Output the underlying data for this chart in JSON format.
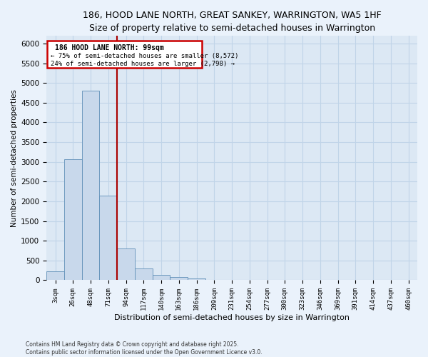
{
  "title1": "186, HOOD LANE NORTH, GREAT SANKEY, WARRINGTON, WA5 1HF",
  "title2": "Size of property relative to semi-detached houses in Warrington",
  "xlabel": "Distribution of semi-detached houses by size in Warrington",
  "ylabel": "Number of semi-detached properties",
  "categories": [
    "3sqm",
    "26sqm",
    "48sqm",
    "71sqm",
    "94sqm",
    "117sqm",
    "140sqm",
    "163sqm",
    "186sqm",
    "209sqm",
    "231sqm",
    "254sqm",
    "277sqm",
    "300sqm",
    "323sqm",
    "346sqm",
    "369sqm",
    "391sqm",
    "414sqm",
    "437sqm",
    "460sqm"
  ],
  "values": [
    230,
    3060,
    4800,
    2140,
    800,
    290,
    130,
    75,
    50,
    0,
    0,
    0,
    0,
    0,
    0,
    0,
    0,
    0,
    0,
    0,
    0
  ],
  "bar_color": "#c8d8eb",
  "bar_edge_color": "#6090b8",
  "vline_x": 3.5,
  "property_sqm": 99,
  "pct_smaller": 75,
  "count_smaller": 8572,
  "pct_larger": 24,
  "count_larger": 2798,
  "annotation_label": "186 HOOD LANE NORTH: 99sqm",
  "vline_color": "#aa0000",
  "box_edge_color": "#cc0000",
  "ylim": [
    0,
    6200
  ],
  "yticks": [
    0,
    500,
    1000,
    1500,
    2000,
    2500,
    3000,
    3500,
    4000,
    4500,
    5000,
    5500,
    6000
  ],
  "grid_color": "#c0d4e8",
  "bg_color": "#dce8f4",
  "fig_bg_color": "#eaf2fb",
  "footer1": "Contains HM Land Registry data © Crown copyright and database right 2025.",
  "footer2": "Contains public sector information licensed under the Open Government Licence v3.0.",
  "title_fontsize": 9,
  "subtitle_fontsize": 8.5
}
